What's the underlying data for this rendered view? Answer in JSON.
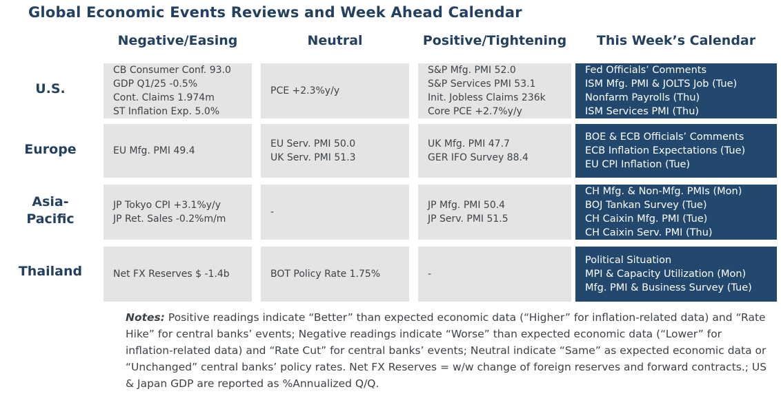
{
  "title": "Global Economic Events Reviews and Week Ahead Calendar",
  "columns": [
    "Negative/Easing",
    "Neutral",
    "Positive/Tightening",
    "This Week’s Calendar"
  ],
  "rows": [
    {
      "label": "U.S.",
      "negative": [
        "CB Consumer Conf. 93.0",
        "GDP Q1/25 -0.5%",
        "Cont. Claims 1.974m",
        "ST Inflation Exp. 5.0%"
      ],
      "neutral": [
        "PCE +2.3%y/y"
      ],
      "positive": [
        "S&P Mfg. PMI 52.0",
        "S&P Services PMI 53.1",
        "Init. Jobless Claims 236k",
        "Core PCE +2.7%y/y"
      ],
      "calendar": [
        "Fed Officials’ Comments",
        "ISM Mfg. PMI & JOLTS Job (Tue)",
        "Nonfarm Payrolls (Thu)",
        "ISM Services PMI (Thu)"
      ]
    },
    {
      "label": "Europe",
      "negative": [
        "EU Mfg. PMI 49.4"
      ],
      "neutral": [
        "EU Serv. PMI 50.0",
        "UK Serv. PMI 51.3"
      ],
      "positive": [
        "UK Mfg. PMI 47.7",
        "GER IFO Survey 88.4"
      ],
      "calendar": [
        "BOE & ECB Officials’ Comments",
        "ECB Inflation Expectations (Tue)",
        "EU CPI Inflation (Tue)"
      ]
    },
    {
      "label_lines": [
        "Asia-",
        "Pacific"
      ],
      "negative": [
        "JP Tokyo CPI +3.1%y/y",
        "JP Ret. Sales -0.2%m/m"
      ],
      "neutral": [
        "-"
      ],
      "positive": [
        "JP Mfg. PMI 50.4",
        "JP Serv. PMI 51.5"
      ],
      "calendar": [
        "CH Mfg. & Non-Mfg. PMIs (Mon)",
        "BOJ Tankan Survey (Tue)",
        "CH Caixin Mfg. PMI (Tue)",
        "CH Caixin Serv. PMI (Thu)"
      ]
    },
    {
      "label": "Thailand",
      "negative": [
        "Net FX Reserves $ -1.4b"
      ],
      "neutral": [
        "BOT Policy Rate 1.75%"
      ],
      "positive": [
        "-"
      ],
      "calendar": [
        "Political Situation",
        "MPI & Capacity Utilization (Mon)",
        "Mfg. PMI & Business Survey (Tue)"
      ]
    }
  ],
  "notes": {
    "label": "Notes:",
    "text": " Positive readings indicate “Better” than expected economic data (“Higher” for inflation-related data) and “Rate Hike” for central banks’ events; Negative readings indicate “Worse” than expected economic data (“Lower” for inflation-related data) and “Rate Cut” for central banks’ events; Neutral indicate “Same” as expected economic data or “Unchanged” central banks’ policy rates. Net FX Reserves = w/w change of foreign reserves and forward contracts.; US & Japan GDP are reported as %Annualized Q/Q."
  },
  "colors": {
    "heading": "#23405f",
    "cell_bg": "#e4e4e4",
    "calendar_bg": "#22486e",
    "text": "#3d4247"
  }
}
